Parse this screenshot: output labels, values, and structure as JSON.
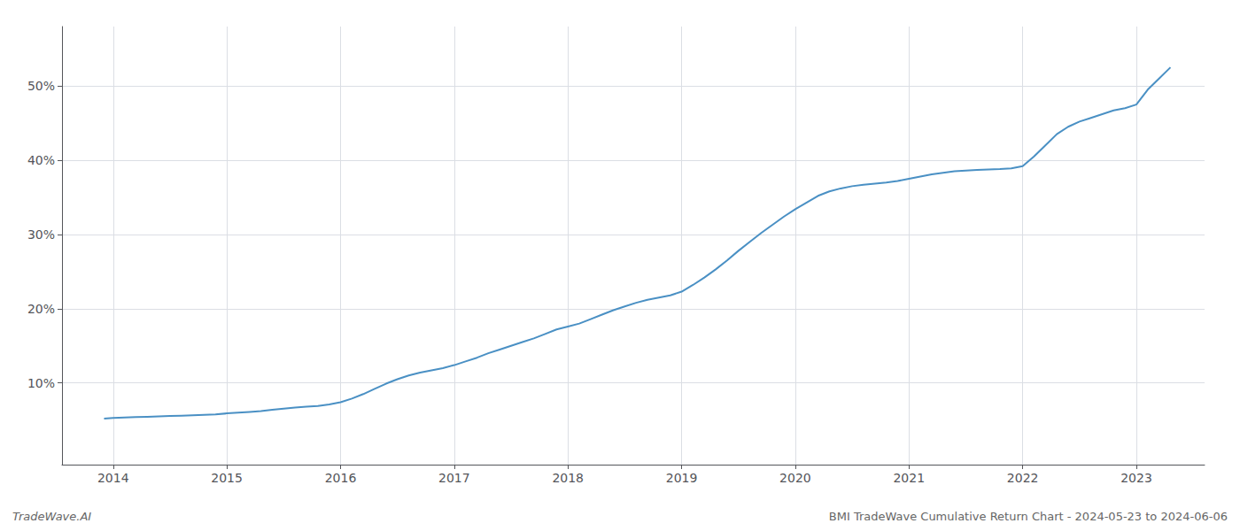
{
  "chart_data": {
    "type": "line",
    "annotations": [
      "TradeWave.AI",
      "BMI TradeWave Cumulative Return Chart - 2024-05-23 to 2024-06-06"
    ],
    "x": [
      2013.92,
      2014.0,
      2014.1,
      2014.2,
      2014.3,
      2014.4,
      2014.5,
      2014.6,
      2014.7,
      2014.8,
      2014.9,
      2015.0,
      2015.1,
      2015.2,
      2015.3,
      2015.4,
      2015.5,
      2015.6,
      2015.7,
      2015.8,
      2015.9,
      2016.0,
      2016.1,
      2016.2,
      2016.3,
      2016.4,
      2016.5,
      2016.6,
      2016.7,
      2016.8,
      2016.9,
      2017.0,
      2017.1,
      2017.2,
      2017.3,
      2017.4,
      2017.5,
      2017.6,
      2017.7,
      2017.8,
      2017.9,
      2018.0,
      2018.1,
      2018.2,
      2018.3,
      2018.4,
      2018.5,
      2018.6,
      2018.7,
      2018.8,
      2018.9,
      2019.0,
      2019.1,
      2019.2,
      2019.3,
      2019.4,
      2019.5,
      2019.6,
      2019.7,
      2019.8,
      2019.9,
      2020.0,
      2020.1,
      2020.2,
      2020.3,
      2020.4,
      2020.5,
      2020.6,
      2020.7,
      2020.8,
      2020.9,
      2021.0,
      2021.1,
      2021.2,
      2021.3,
      2021.4,
      2021.5,
      2021.6,
      2021.7,
      2021.8,
      2021.9,
      2022.0,
      2022.1,
      2022.2,
      2022.3,
      2022.4,
      2022.5,
      2022.6,
      2022.7,
      2022.8,
      2022.9,
      2023.0,
      2023.1,
      2023.2,
      2023.3
    ],
    "values": [
      5.2,
      5.3,
      5.35,
      5.4,
      5.45,
      5.5,
      5.55,
      5.6,
      5.65,
      5.7,
      5.75,
      5.9,
      6.0,
      6.1,
      6.2,
      6.4,
      6.55,
      6.7,
      6.8,
      6.9,
      7.1,
      7.4,
      7.9,
      8.5,
      9.2,
      9.9,
      10.5,
      11.0,
      11.4,
      11.7,
      12.0,
      12.4,
      12.9,
      13.4,
      14.0,
      14.5,
      15.0,
      15.5,
      16.0,
      16.6,
      17.2,
      17.6,
      18.0,
      18.6,
      19.2,
      19.8,
      20.3,
      20.8,
      21.2,
      21.5,
      21.8,
      22.3,
      23.2,
      24.2,
      25.3,
      26.5,
      27.8,
      29.0,
      30.2,
      31.3,
      32.4,
      33.4,
      34.3,
      35.2,
      35.8,
      36.2,
      36.5,
      36.7,
      36.85,
      37.0,
      37.2,
      37.5,
      37.8,
      38.1,
      38.3,
      38.5,
      38.6,
      38.7,
      38.75,
      38.8,
      38.9,
      39.2,
      40.5,
      42.0,
      43.5,
      44.5,
      45.2,
      45.7,
      46.2,
      46.7,
      47.0,
      47.5,
      49.5,
      51.0,
      52.5
    ],
    "color": "#4a90c4",
    "xlim": [
      2013.55,
      2023.6
    ],
    "ylim": [
      -1,
      58
    ],
    "xticks": [
      2014,
      2015,
      2016,
      2017,
      2018,
      2019,
      2020,
      2021,
      2022,
      2023
    ],
    "yticks": [
      {
        "value": 10,
        "label": "10%"
      },
      {
        "value": 20,
        "label": "20%"
      },
      {
        "value": 30,
        "label": "30%"
      },
      {
        "value": 40,
        "label": "40%"
      },
      {
        "value": 50,
        "label": "50%"
      }
    ],
    "grid": true
  }
}
